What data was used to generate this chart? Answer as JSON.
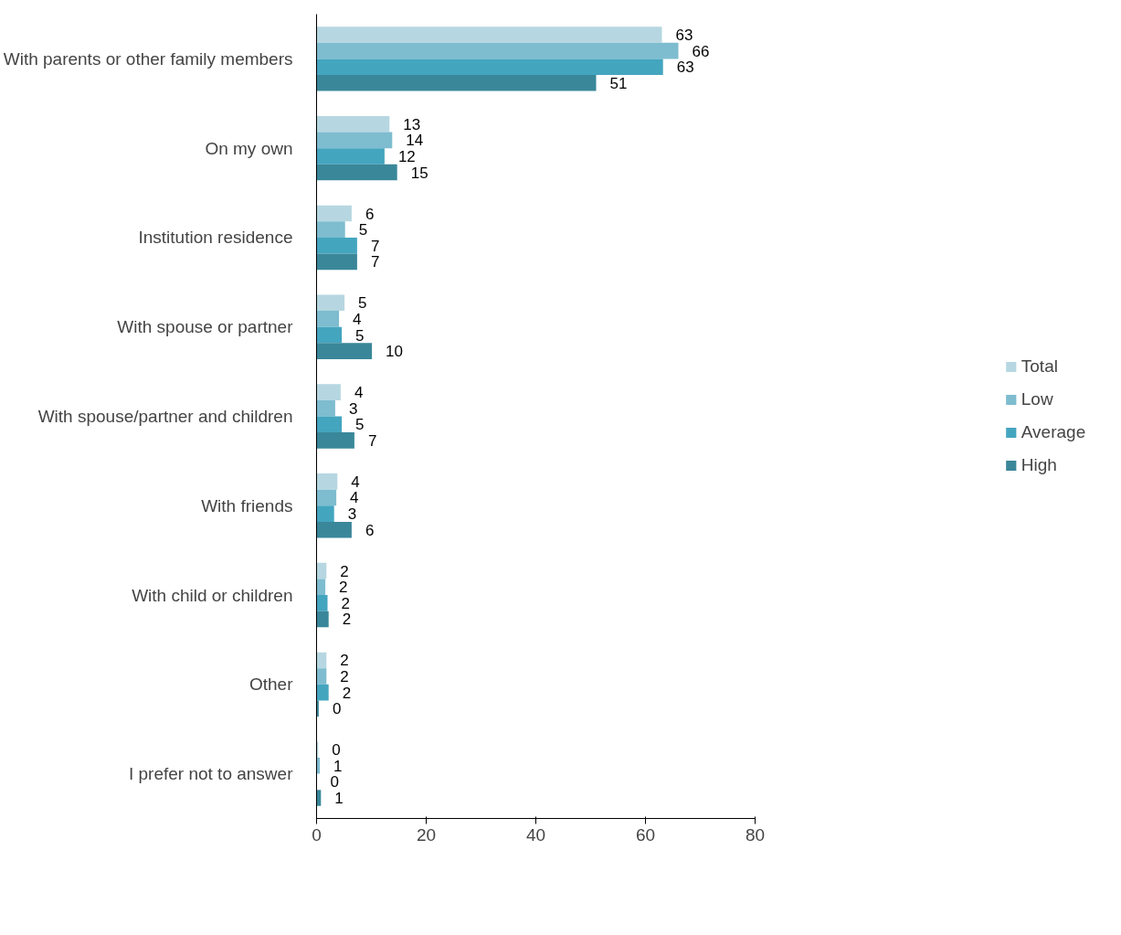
{
  "chart_data": {
    "type": "bar",
    "orientation": "horizontal",
    "categories": [
      "With parents or other family members",
      "On my own",
      "Institution residence",
      "With spouse or partner",
      "With spouse/partner and children",
      "With friends",
      "With child or children",
      "Other",
      "I prefer not to answer"
    ],
    "series": [
      {
        "name": "Total",
        "color": "#b6d7e1",
        "values": [
          63,
          13.3,
          6.4,
          5.1,
          4.4,
          3.8,
          1.8,
          1.8,
          0.3
        ],
        "value_labels": [
          "63",
          "13",
          "6",
          "5",
          "4",
          "4",
          "2",
          "2",
          "0"
        ]
      },
      {
        "name": "Low",
        "color": "#7ebccf",
        "values": [
          66,
          13.8,
          5.2,
          4.1,
          3.4,
          3.6,
          1.6,
          1.8,
          0.6
        ],
        "value_labels": [
          "66",
          "14",
          "5",
          "4",
          "3",
          "4",
          "2",
          "2",
          "1"
        ]
      },
      {
        "name": "Average",
        "color": "#44a5bf",
        "values": [
          63.2,
          12.4,
          7.4,
          4.6,
          4.6,
          3.2,
          2.0,
          2.2,
          0
        ],
        "value_labels": [
          "63",
          "12",
          "7",
          "5",
          "5",
          "3",
          "2",
          "2",
          "0"
        ]
      },
      {
        "name": "High",
        "color": "#3a8799",
        "values": [
          51,
          14.7,
          7.4,
          10.1,
          6.9,
          6.4,
          2.2,
          0.4,
          0.8
        ],
        "value_labels": [
          "51",
          "15",
          "7",
          "10",
          "7",
          "6",
          "2",
          "0",
          "1"
        ]
      }
    ],
    "xlim": [
      0,
      80
    ],
    "xticks": [
      0,
      20,
      40,
      60,
      80
    ],
    "grid": false,
    "legend": "right"
  }
}
